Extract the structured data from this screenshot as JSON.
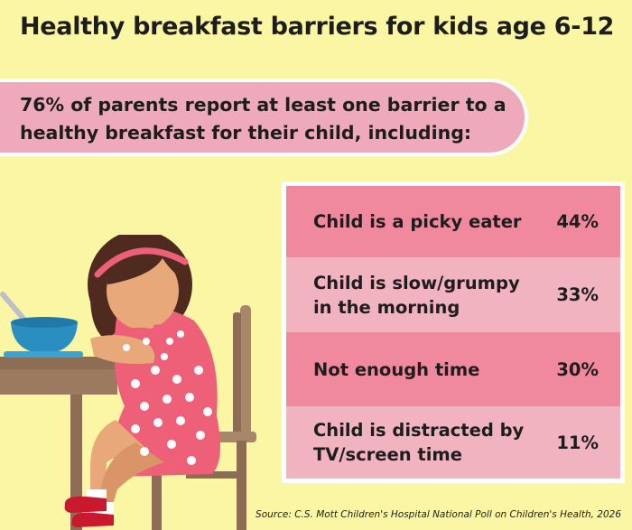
{
  "title": "Healthy breakfast barriers for kids age 6-12",
  "subtitle_line1": "76% of parents report at least one barrier to a",
  "subtitle_line2": "healthy breakfast for their child, including:",
  "source": "Source: C.S. Mott Children's Hospital National Poll on Children's Health, 2026",
  "colors": {
    "background": "#fbf6a4",
    "banner": "#eeaaba",
    "row_dark": "#f0899e",
    "row_light": "#f2b3c0",
    "dress": "#ee5f78"
  },
  "illustration": [
    "sad-girl-at-table-icon",
    "cereal-bowl-icon",
    "chair-icon"
  ],
  "chart_data": {
    "type": "table",
    "rows": [
      {
        "line1": "Child is a picky eater",
        "line2": "",
        "value": 44,
        "label": "44%"
      },
      {
        "line1": "Child is slow/grumpy",
        "line2": "in the morning",
        "value": 33,
        "label": "33%"
      },
      {
        "line1": "Not enough time",
        "line2": "",
        "value": 30,
        "label": "30%"
      },
      {
        "line1": "Child is distracted by",
        "line2": "TV/screen time",
        "value": 11,
        "label": "11%"
      }
    ]
  }
}
